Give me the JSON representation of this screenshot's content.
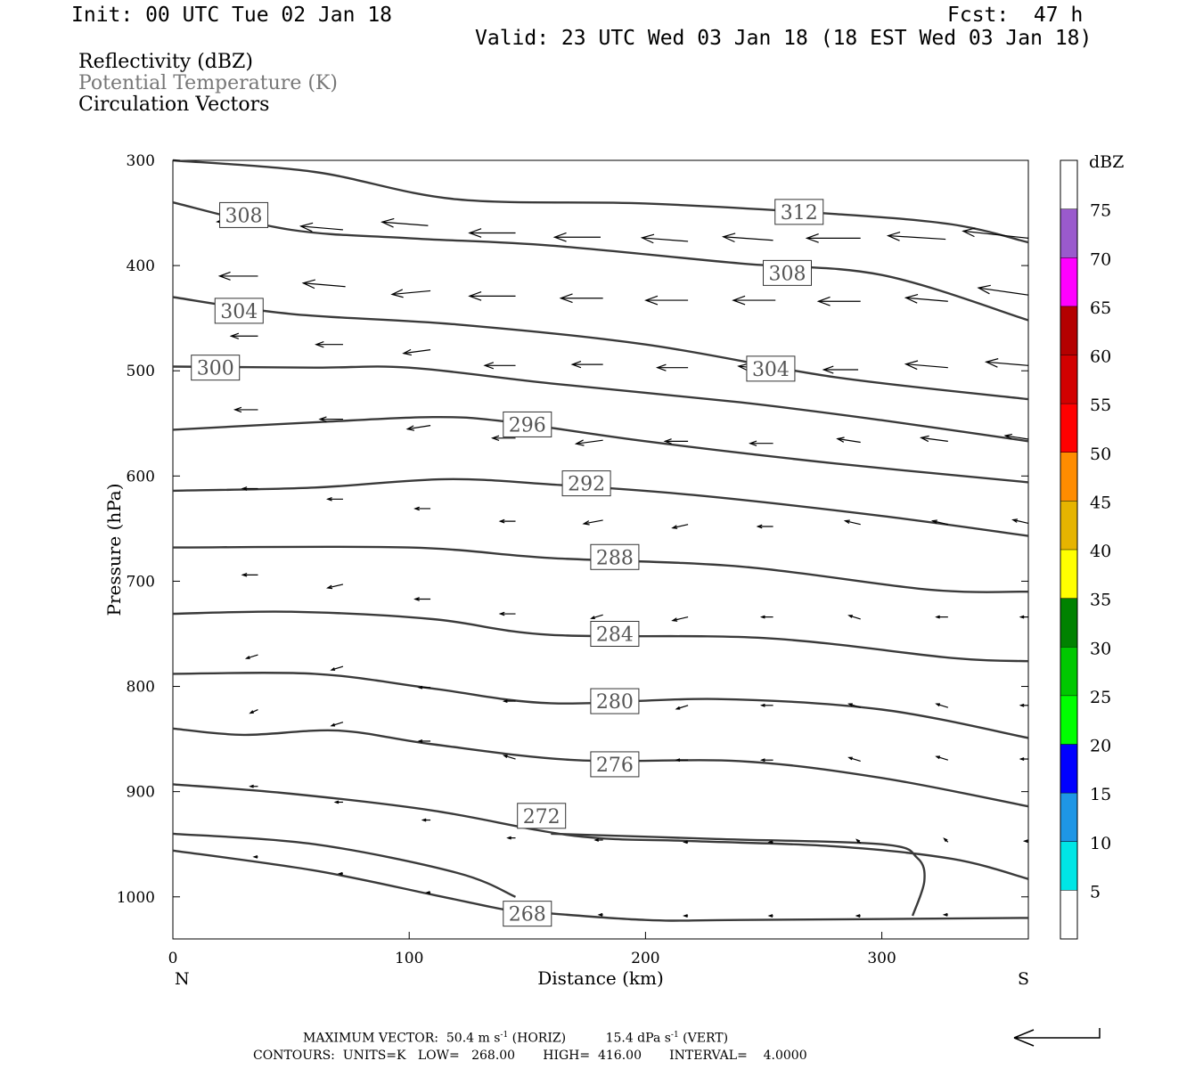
{
  "header": {
    "init": "Init: 00 UTC Tue 02 Jan 18",
    "fcst": "Fcst:  47 h",
    "valid": "Valid: 23 UTC Wed 03 Jan 18 (18 EST Wed 03 Jan 18)"
  },
  "fields": {
    "reflectivity": "Reflectivity (dBZ)",
    "theta": "Potential Temperature (K)",
    "vectors": "Circulation Vectors"
  },
  "colors": {
    "contour": "#3a3a3a",
    "theta_label": "#777777",
    "vector": "#000000"
  },
  "footer": {
    "line1_a": "MAXIMUM VECTOR:  50.4 m s",
    "line1_b": " (HORIZ)          15.4 dPa s",
    "line1_c": " (VERT)",
    "sup": "-1",
    "line2": "CONTOURS:  UNITS=K   LOW=   268.00       HIGH=  416.00       INTERVAL=    4.0000"
  },
  "chart_data": {
    "type": "contour",
    "xlabel": "Distance (km)",
    "ylabel": "Pressure (hPa)",
    "xlim": [
      0,
      362
    ],
    "ylim": [
      1040,
      300
    ],
    "x_ticks": [
      0,
      100,
      200,
      300
    ],
    "y_ticks": [
      300,
      400,
      500,
      600,
      700,
      800,
      900,
      1000
    ],
    "x_end_labels": {
      "left": "N",
      "right": "S"
    },
    "colorbar": {
      "unit_label": "dBZ",
      "levels": [
        5,
        10,
        15,
        20,
        25,
        30,
        35,
        40,
        45,
        50,
        55,
        60,
        65,
        70,
        75
      ],
      "colors": [
        "#00e6e6",
        "#1e96e6",
        "#0000ff",
        "#00ff00",
        "#00c800",
        "#008200",
        "#ffff00",
        "#e6b400",
        "#ff8c00",
        "#ff0000",
        "#d20000",
        "#b40000",
        "#ff00ff",
        "#9a5acd",
        "#ffffff"
      ]
    },
    "contours": [
      {
        "level": 312,
        "label_at": [
          265,
          349
        ],
        "points": [
          [
            0,
            300
          ],
          [
            60,
            311
          ],
          [
            120,
            337
          ],
          [
            200,
            341
          ],
          [
            280,
            351
          ],
          [
            330,
            361
          ],
          [
            362,
            378
          ]
        ]
      },
      {
        "level": 308,
        "label_at": [
          30,
          352
        ],
        "points": [
          [
            0,
            340
          ],
          [
            50,
            366
          ],
          [
            100,
            374
          ],
          [
            160,
            381
          ],
          [
            240,
            398
          ],
          [
            300,
            409
          ],
          [
            362,
            452
          ]
        ]
      },
      {
        "level": 308,
        "label_at": [
          260,
          407
        ],
        "points": []
      },
      {
        "level": 304,
        "label_at": [
          28,
          443
        ],
        "points": [
          [
            0,
            430
          ],
          [
            50,
            446
          ],
          [
            120,
            456
          ],
          [
            200,
            475
          ],
          [
            280,
            506
          ],
          [
            362,
            527
          ]
        ]
      },
      {
        "level": 304,
        "label_at": [
          253,
          498
        ],
        "points": []
      },
      {
        "level": 300,
        "label_at": [
          18,
          497
        ],
        "points": [
          [
            0,
            496
          ],
          [
            60,
            497
          ],
          [
            100,
            497
          ],
          [
            160,
            512
          ],
          [
            240,
            530
          ],
          [
            300,
            547
          ],
          [
            362,
            567
          ]
        ]
      },
      {
        "level": 296,
        "label_at": [
          150,
          551
        ],
        "points": [
          [
            0,
            556
          ],
          [
            60,
            549
          ],
          [
            110,
            544
          ],
          [
            140,
            548
          ],
          [
            200,
            567
          ],
          [
            280,
            588
          ],
          [
            362,
            606
          ]
        ]
      },
      {
        "level": 292,
        "label_at": [
          175,
          607
        ],
        "points": [
          [
            0,
            614
          ],
          [
            60,
            611
          ],
          [
            115,
            603
          ],
          [
            160,
            608
          ],
          [
            220,
            618
          ],
          [
            300,
            638
          ],
          [
            362,
            657
          ]
        ]
      },
      {
        "level": 288,
        "label_at": [
          187,
          677
        ],
        "points": [
          [
            0,
            668
          ],
          [
            100,
            668
          ],
          [
            160,
            678
          ],
          [
            240,
            686
          ],
          [
            320,
            708
          ],
          [
            362,
            710
          ]
        ]
      },
      {
        "level": 284,
        "label_at": [
          187,
          750
        ],
        "points": [
          [
            0,
            731
          ],
          [
            50,
            729
          ],
          [
            110,
            736
          ],
          [
            160,
            751
          ],
          [
            250,
            754
          ],
          [
            330,
            773
          ],
          [
            362,
            776
          ]
        ]
      },
      {
        "level": 280,
        "label_at": [
          187,
          814
        ],
        "points": [
          [
            0,
            788
          ],
          [
            60,
            788
          ],
          [
            110,
            802
          ],
          [
            160,
            816
          ],
          [
            230,
            812
          ],
          [
            300,
            822
          ],
          [
            362,
            849
          ]
        ]
      },
      {
        "level": 276,
        "label_at": [
          187,
          874
        ],
        "points": [
          [
            0,
            840
          ],
          [
            30,
            846
          ],
          [
            70,
            842
          ],
          [
            110,
            855
          ],
          [
            170,
            870
          ],
          [
            240,
            871
          ],
          [
            300,
            887
          ],
          [
            362,
            914
          ]
        ]
      },
      {
        "level": 272,
        "label_at": [
          156,
          923
        ],
        "points": [
          [
            0,
            893
          ],
          [
            50,
            902
          ],
          [
            110,
            918
          ],
          [
            170,
            942
          ],
          [
            220,
            947
          ],
          [
            280,
            952
          ],
          [
            330,
            964
          ],
          [
            362,
            983
          ]
        ]
      },
      {
        "level": 268,
        "label_at": [
          150,
          1016
        ],
        "points": [
          [
            0,
            956
          ],
          [
            60,
            975
          ],
          [
            110,
            998
          ],
          [
            140,
            1012
          ],
          [
            150,
            1014
          ],
          [
            200,
            1022
          ],
          [
            240,
            1022
          ],
          [
            362,
            1020
          ]
        ]
      },
      {
        "level": 268,
        "label_at": null,
        "points": [
          [
            0,
            940
          ],
          [
            60,
            950
          ],
          [
            120,
            977
          ],
          [
            145,
            1000
          ]
        ]
      },
      {
        "level": 268,
        "label_at": null,
        "points": [
          [
            160,
            940
          ],
          [
            230,
            945
          ],
          [
            300,
            950
          ],
          [
            315,
            963
          ],
          [
            318,
            985
          ],
          [
            313,
            1018
          ]
        ]
      }
    ],
    "vectors": [
      {
        "x": 35,
        "p": 355,
        "u": -10,
        "w": -1
      },
      {
        "x": 72,
        "p": 366,
        "u": -11,
        "w": 1
      },
      {
        "x": 108,
        "p": 362,
        "u": -12,
        "w": 1
      },
      {
        "x": 145,
        "p": 369,
        "u": -12,
        "w": 0
      },
      {
        "x": 181,
        "p": 373,
        "u": -12,
        "w": 0
      },
      {
        "x": 218,
        "p": 377,
        "u": -12,
        "w": 1
      },
      {
        "x": 254,
        "p": 376,
        "u": -13,
        "w": 1
      },
      {
        "x": 291,
        "p": 374,
        "u": -14,
        "w": 0
      },
      {
        "x": 327,
        "p": 375,
        "u": -15,
        "w": 1
      },
      {
        "x": 362,
        "p": 374,
        "u": -17,
        "w": 2
      },
      {
        "x": 36,
        "p": 410,
        "u": -10,
        "w": 0
      },
      {
        "x": 73,
        "p": 420,
        "u": -11,
        "w": 1
      },
      {
        "x": 109,
        "p": 424,
        "u": -10,
        "w": -1
      },
      {
        "x": 145,
        "p": 429,
        "u": -12,
        "w": 0
      },
      {
        "x": 182,
        "p": 431,
        "u": -11,
        "w": 0
      },
      {
        "x": 218,
        "p": 433,
        "u": -11,
        "w": 0
      },
      {
        "x": 255,
        "p": 433,
        "u": -11,
        "w": 0
      },
      {
        "x": 291,
        "p": 434,
        "u": -11,
        "w": 0
      },
      {
        "x": 328,
        "p": 434,
        "u": -11,
        "w": 1
      },
      {
        "x": 362,
        "p": 428,
        "u": -13,
        "w": 2
      },
      {
        "x": 36,
        "p": 467,
        "u": -7,
        "w": 0
      },
      {
        "x": 72,
        "p": 475,
        "u": -7,
        "w": 0
      },
      {
        "x": 109,
        "p": 480,
        "u": -7,
        "w": -1
      },
      {
        "x": 145,
        "p": 495,
        "u": -8,
        "w": 0
      },
      {
        "x": 182,
        "p": 494,
        "u": -8,
        "w": 0
      },
      {
        "x": 218,
        "p": 497,
        "u": -8,
        "w": 0
      },
      {
        "x": 254,
        "p": 499,
        "u": -9,
        "w": 1
      },
      {
        "x": 290,
        "p": 499,
        "u": -9,
        "w": 0
      },
      {
        "x": 328,
        "p": 497,
        "u": -11,
        "w": 1
      },
      {
        "x": 362,
        "p": 495,
        "u": -11,
        "w": 1
      },
      {
        "x": 36,
        "p": 537,
        "u": -6,
        "w": 0
      },
      {
        "x": 72,
        "p": 546,
        "u": -6,
        "w": 0
      },
      {
        "x": 109,
        "p": 552,
        "u": -6,
        "w": -1
      },
      {
        "x": 145,
        "p": 564,
        "u": -6,
        "w": 0
      },
      {
        "x": 182,
        "p": 566,
        "u": -7,
        "w": -1
      },
      {
        "x": 218,
        "p": 567,
        "u": -6,
        "w": 0
      },
      {
        "x": 254,
        "p": 569,
        "u": -6,
        "w": 0
      },
      {
        "x": 291,
        "p": 568,
        "u": -6,
        "w": 1
      },
      {
        "x": 328,
        "p": 567,
        "u": -7,
        "w": 1
      },
      {
        "x": 362,
        "p": 565,
        "u": -6,
        "w": 1
      },
      {
        "x": 36,
        "p": 612,
        "u": -4,
        "w": 0
      },
      {
        "x": 72,
        "p": 622,
        "u": -4,
        "w": 0
      },
      {
        "x": 109,
        "p": 631,
        "u": -4,
        "w": 0
      },
      {
        "x": 145,
        "p": 643,
        "u": -4,
        "w": 0
      },
      {
        "x": 182,
        "p": 642,
        "u": -5,
        "w": -1
      },
      {
        "x": 218,
        "p": 646,
        "u": -4,
        "w": -1
      },
      {
        "x": 254,
        "p": 648,
        "u": -4,
        "w": 0
      },
      {
        "x": 291,
        "p": 646,
        "u": -4,
        "w": 1
      },
      {
        "x": 328,
        "p": 646,
        "u": -4,
        "w": 1
      },
      {
        "x": 362,
        "p": 645,
        "u": -4,
        "w": 1
      },
      {
        "x": 36,
        "p": 694,
        "u": -4,
        "w": 0
      },
      {
        "x": 72,
        "p": 703,
        "u": -4,
        "w": -1
      },
      {
        "x": 109,
        "p": 717,
        "u": -4,
        "w": 0
      },
      {
        "x": 145,
        "p": 731,
        "u": -4,
        "w": 0
      },
      {
        "x": 182,
        "p": 732,
        "u": -3,
        "w": -1
      },
      {
        "x": 218,
        "p": 734,
        "u": -4,
        "w": -1
      },
      {
        "x": 254,
        "p": 734,
        "u": -3,
        "w": 0
      },
      {
        "x": 291,
        "p": 736,
        "u": -3,
        "w": 1
      },
      {
        "x": 328,
        "p": 734,
        "u": -3,
        "w": 0
      },
      {
        "x": 362,
        "p": 734,
        "u": -2,
        "w": 0
      },
      {
        "x": 36,
        "p": 770,
        "u": -3,
        "w": -1
      },
      {
        "x": 72,
        "p": 781,
        "u": -3,
        "w": -1
      },
      {
        "x": 109,
        "p": 801,
        "u": -3,
        "w": 0
      },
      {
        "x": 145,
        "p": 814,
        "u": -3,
        "w": 0
      },
      {
        "x": 182,
        "p": 813,
        "u": -3,
        "w": 0
      },
      {
        "x": 218,
        "p": 818,
        "u": -3,
        "w": -1
      },
      {
        "x": 254,
        "p": 818,
        "u": -3,
        "w": 0
      },
      {
        "x": 291,
        "p": 820,
        "u": -3,
        "w": 1
      },
      {
        "x": 328,
        "p": 820,
        "u": -3,
        "w": 1
      },
      {
        "x": 362,
        "p": 818,
        "u": -2,
        "w": 0
      },
      {
        "x": 36,
        "p": 822,
        "u": -2,
        "w": -1
      },
      {
        "x": 72,
        "p": 834,
        "u": -3,
        "w": -1
      },
      {
        "x": 109,
        "p": 852,
        "u": -3,
        "w": 0
      },
      {
        "x": 145,
        "p": 869,
        "u": -3,
        "w": 1
      },
      {
        "x": 182,
        "p": 868,
        "u": -3,
        "w": -1
      },
      {
        "x": 218,
        "p": 870,
        "u": -3,
        "w": 0
      },
      {
        "x": 254,
        "p": 870,
        "u": -3,
        "w": 0
      },
      {
        "x": 291,
        "p": 871,
        "u": -3,
        "w": 1
      },
      {
        "x": 328,
        "p": 870,
        "u": -3,
        "w": 1
      },
      {
        "x": 362,
        "p": 869,
        "u": -2,
        "w": 0
      },
      {
        "x": 36,
        "p": 895,
        "u": -2,
        "w": 0
      },
      {
        "x": 72,
        "p": 910,
        "u": -2,
        "w": 0
      },
      {
        "x": 109,
        "p": 927,
        "u": -2,
        "w": 0
      },
      {
        "x": 145,
        "p": 944,
        "u": -2,
        "w": 0
      },
      {
        "x": 182,
        "p": 946,
        "u": -2,
        "w": 0
      },
      {
        "x": 218,
        "p": 948,
        "u": -1,
        "w": 0
      },
      {
        "x": 254,
        "p": 948,
        "u": -1,
        "w": 0
      },
      {
        "x": 291,
        "p": 949,
        "u": -1,
        "w": 1
      },
      {
        "x": 328,
        "p": 948,
        "u": -1,
        "w": 1
      },
      {
        "x": 362,
        "p": 947,
        "u": -1,
        "w": 0
      },
      {
        "x": 36,
        "p": 962,
        "u": -1,
        "w": 0
      },
      {
        "x": 72,
        "p": 978,
        "u": -1,
        "w": 0
      },
      {
        "x": 109,
        "p": 996,
        "u": -1,
        "w": 0
      },
      {
        "x": 182,
        "p": 1017,
        "u": -1,
        "w": 0
      },
      {
        "x": 218,
        "p": 1018,
        "u": -1,
        "w": 0
      },
      {
        "x": 254,
        "p": 1018,
        "u": -1,
        "w": 0
      },
      {
        "x": 291,
        "p": 1018,
        "u": -1,
        "w": 0
      },
      {
        "x": 328,
        "p": 1017,
        "u": -1,
        "w": 0
      }
    ]
  }
}
